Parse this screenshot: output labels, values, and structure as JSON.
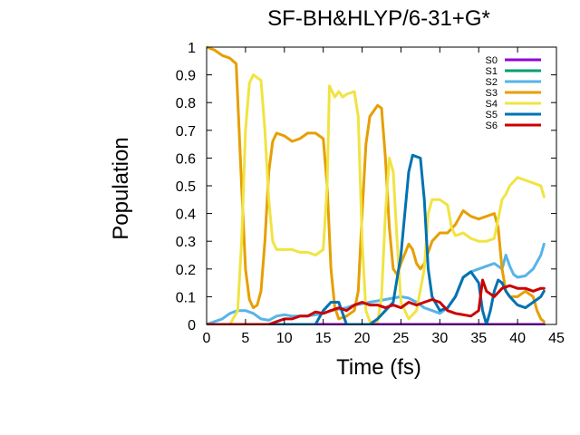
{
  "chart_data": {
    "type": "line",
    "title": "SF-BH&HLYP/6-31+G*",
    "xlabel": "Time (fs)",
    "ylabel": "Population",
    "xlim": [
      0,
      45
    ],
    "ylim": [
      0,
      1
    ],
    "xticks": [
      0,
      5,
      10,
      15,
      20,
      25,
      30,
      35,
      40,
      45
    ],
    "yticks": [
      0,
      0.1,
      0.2,
      0.3,
      0.4,
      0.5,
      0.6,
      0.7,
      0.8,
      0.9,
      1
    ],
    "legend": {
      "position": "top-right"
    },
    "grid": false,
    "series": [
      {
        "name": "S0",
        "color": "#9400d3",
        "points": [
          [
            0,
            0
          ],
          [
            43.4,
            0
          ]
        ]
      },
      {
        "name": "S1",
        "color": "#009e73",
        "points": [
          [
            0,
            0
          ],
          [
            43.4,
            0
          ]
        ]
      },
      {
        "name": "S2",
        "color": "#56b4e9",
        "points": [
          [
            0,
            0.0
          ],
          [
            1,
            0.01
          ],
          [
            2,
            0.02
          ],
          [
            3,
            0.04
          ],
          [
            4,
            0.05
          ],
          [
            5,
            0.05
          ],
          [
            6,
            0.04
          ],
          [
            7,
            0.02
          ],
          [
            8,
            0.015
          ],
          [
            9,
            0.03
          ],
          [
            10,
            0.035
          ],
          [
            11,
            0.03
          ],
          [
            12,
            0.03
          ],
          [
            13,
            0.03
          ],
          [
            14,
            0.035
          ],
          [
            15,
            0.04
          ],
          [
            16,
            0.05
          ],
          [
            17,
            0.055
          ],
          [
            18,
            0.06
          ],
          [
            19,
            0.07
          ],
          [
            20,
            0.075
          ],
          [
            21,
            0.08
          ],
          [
            22,
            0.085
          ],
          [
            23,
            0.09
          ],
          [
            24,
            0.095
          ],
          [
            25,
            0.1
          ],
          [
            26,
            0.095
          ],
          [
            27,
            0.08
          ],
          [
            28,
            0.06
          ],
          [
            29,
            0.05
          ],
          [
            30,
            0.04
          ],
          [
            31,
            0.06
          ],
          [
            32,
            0.1
          ],
          [
            33,
            0.17
          ],
          [
            34,
            0.19
          ],
          [
            35,
            0.2
          ],
          [
            36,
            0.21
          ],
          [
            37,
            0.22
          ],
          [
            38,
            0.2
          ],
          [
            38.5,
            0.25
          ],
          [
            39,
            0.21
          ],
          [
            39.5,
            0.18
          ],
          [
            40,
            0.17
          ],
          [
            41,
            0.175
          ],
          [
            42,
            0.2
          ],
          [
            43,
            0.25
          ],
          [
            43.4,
            0.29
          ]
        ]
      },
      {
        "name": "S3",
        "color": "#e69f00",
        "points": [
          [
            0,
            1.0
          ],
          [
            1,
            0.99
          ],
          [
            2,
            0.97
          ],
          [
            3,
            0.96
          ],
          [
            3.8,
            0.94
          ],
          [
            4.5,
            0.5
          ],
          [
            5,
            0.2
          ],
          [
            5.5,
            0.09
          ],
          [
            6,
            0.06
          ],
          [
            6.5,
            0.07
          ],
          [
            7,
            0.12
          ],
          [
            7.5,
            0.3
          ],
          [
            8,
            0.55
          ],
          [
            8.5,
            0.66
          ],
          [
            9,
            0.69
          ],
          [
            10,
            0.68
          ],
          [
            11,
            0.66
          ],
          [
            12,
            0.67
          ],
          [
            13,
            0.69
          ],
          [
            14,
            0.69
          ],
          [
            15,
            0.67
          ],
          [
            15.5,
            0.5
          ],
          [
            16,
            0.2
          ],
          [
            16.5,
            0.06
          ],
          [
            17,
            0.02
          ],
          [
            18,
            0.03
          ],
          [
            19,
            0.05
          ],
          [
            19.5,
            0.12
          ],
          [
            20,
            0.4
          ],
          [
            20.5,
            0.65
          ],
          [
            21,
            0.75
          ],
          [
            22,
            0.79
          ],
          [
            22.5,
            0.78
          ],
          [
            23,
            0.6
          ],
          [
            23.5,
            0.35
          ],
          [
            24,
            0.2
          ],
          [
            24.5,
            0.18
          ],
          [
            25,
            0.22
          ],
          [
            26,
            0.29
          ],
          [
            26.5,
            0.27
          ],
          [
            27,
            0.22
          ],
          [
            27.5,
            0.2
          ],
          [
            28,
            0.22
          ],
          [
            29,
            0.3
          ],
          [
            30,
            0.33
          ],
          [
            31,
            0.33
          ],
          [
            32,
            0.36
          ],
          [
            33,
            0.41
          ],
          [
            34,
            0.39
          ],
          [
            35,
            0.38
          ],
          [
            36,
            0.39
          ],
          [
            37,
            0.4
          ],
          [
            37.5,
            0.35
          ],
          [
            38,
            0.2
          ],
          [
            38.5,
            0.12
          ],
          [
            39,
            0.1
          ],
          [
            40,
            0.1
          ],
          [
            41,
            0.12
          ],
          [
            42,
            0.1
          ],
          [
            42.5,
            0.05
          ],
          [
            43,
            0.02
          ],
          [
            43.4,
            0.01
          ]
        ]
      },
      {
        "name": "S4",
        "color": "#f0e442",
        "points": [
          [
            0,
            0.0
          ],
          [
            3,
            0.0
          ],
          [
            4,
            0.05
          ],
          [
            4.5,
            0.3
          ],
          [
            5,
            0.7
          ],
          [
            5.5,
            0.87
          ],
          [
            6,
            0.9
          ],
          [
            7,
            0.88
          ],
          [
            7.5,
            0.7
          ],
          [
            8,
            0.45
          ],
          [
            8.5,
            0.3
          ],
          [
            9,
            0.27
          ],
          [
            10,
            0.27
          ],
          [
            11,
            0.27
          ],
          [
            12,
            0.26
          ],
          [
            13,
            0.26
          ],
          [
            14,
            0.25
          ],
          [
            15,
            0.27
          ],
          [
            15.5,
            0.5
          ],
          [
            15.8,
            0.86
          ],
          [
            16.5,
            0.82
          ],
          [
            17,
            0.84
          ],
          [
            17.5,
            0.82
          ],
          [
            18,
            0.83
          ],
          [
            19,
            0.84
          ],
          [
            19.5,
            0.75
          ],
          [
            20,
            0.3
          ],
          [
            20.5,
            0.05
          ],
          [
            21,
            0.01
          ],
          [
            22,
            0.01
          ],
          [
            22.5,
            0.1
          ],
          [
            23,
            0.4
          ],
          [
            23.5,
            0.6
          ],
          [
            24,
            0.55
          ],
          [
            24.5,
            0.3
          ],
          [
            25,
            0.08
          ],
          [
            26,
            0.02
          ],
          [
            27,
            0.05
          ],
          [
            28,
            0.2
          ],
          [
            28.5,
            0.4
          ],
          [
            29,
            0.45
          ],
          [
            30,
            0.45
          ],
          [
            31,
            0.43
          ],
          [
            31.5,
            0.35
          ],
          [
            32,
            0.32
          ],
          [
            33,
            0.33
          ],
          [
            34,
            0.31
          ],
          [
            35,
            0.3
          ],
          [
            36,
            0.3
          ],
          [
            37,
            0.31
          ],
          [
            37.5,
            0.38
          ],
          [
            38,
            0.45
          ],
          [
            38.5,
            0.47
          ],
          [
            39,
            0.5
          ],
          [
            40,
            0.53
          ],
          [
            41,
            0.52
          ],
          [
            42,
            0.51
          ],
          [
            43,
            0.5
          ],
          [
            43.4,
            0.46
          ]
        ]
      },
      {
        "name": "S5",
        "color": "#0072b2",
        "points": [
          [
            0,
            0.0
          ],
          [
            14,
            0.0
          ],
          [
            15,
            0.05
          ],
          [
            16,
            0.08
          ],
          [
            17,
            0.08
          ],
          [
            17.5,
            0.04
          ],
          [
            18,
            0.0
          ],
          [
            21,
            0.0
          ],
          [
            22,
            0.02
          ],
          [
            23,
            0.05
          ],
          [
            24,
            0.08
          ],
          [
            25,
            0.25
          ],
          [
            26,
            0.55
          ],
          [
            26.5,
            0.61
          ],
          [
            27.5,
            0.6
          ],
          [
            28,
            0.45
          ],
          [
            28.5,
            0.2
          ],
          [
            29,
            0.1
          ],
          [
            30,
            0.05
          ],
          [
            31,
            0.06
          ],
          [
            32,
            0.1
          ],
          [
            33,
            0.17
          ],
          [
            34,
            0.19
          ],
          [
            35,
            0.15
          ],
          [
            35.5,
            0.05
          ],
          [
            36,
            0.0
          ],
          [
            36.5,
            0.05
          ],
          [
            37,
            0.12
          ],
          [
            37.5,
            0.16
          ],
          [
            38,
            0.15
          ],
          [
            38.5,
            0.12
          ],
          [
            39,
            0.1
          ],
          [
            40,
            0.07
          ],
          [
            41,
            0.06
          ],
          [
            42,
            0.08
          ],
          [
            43,
            0.1
          ],
          [
            43.4,
            0.12
          ]
        ]
      },
      {
        "name": "S6",
        "color": "#cc0000",
        "points": [
          [
            0,
            0.0
          ],
          [
            8,
            0.0
          ],
          [
            9,
            0.01
          ],
          [
            10,
            0.02
          ],
          [
            11,
            0.02
          ],
          [
            12,
            0.03
          ],
          [
            13,
            0.03
          ],
          [
            14,
            0.045
          ],
          [
            15,
            0.04
          ],
          [
            16,
            0.05
          ],
          [
            17,
            0.06
          ],
          [
            18,
            0.05
          ],
          [
            19,
            0.07
          ],
          [
            20,
            0.08
          ],
          [
            21,
            0.07
          ],
          [
            22,
            0.07
          ],
          [
            23,
            0.06
          ],
          [
            24,
            0.07
          ],
          [
            25,
            0.06
          ],
          [
            26,
            0.08
          ],
          [
            27,
            0.07
          ],
          [
            28,
            0.08
          ],
          [
            29,
            0.09
          ],
          [
            30,
            0.08
          ],
          [
            31,
            0.05
          ],
          [
            32,
            0.04
          ],
          [
            33,
            0.035
          ],
          [
            34,
            0.03
          ],
          [
            35,
            0.05
          ],
          [
            35.5,
            0.16
          ],
          [
            36,
            0.12
          ],
          [
            37,
            0.1
          ],
          [
            38,
            0.13
          ],
          [
            39,
            0.14
          ],
          [
            40,
            0.13
          ],
          [
            41,
            0.13
          ],
          [
            42,
            0.12
          ],
          [
            43,
            0.13
          ],
          [
            43.4,
            0.13
          ]
        ]
      }
    ]
  }
}
